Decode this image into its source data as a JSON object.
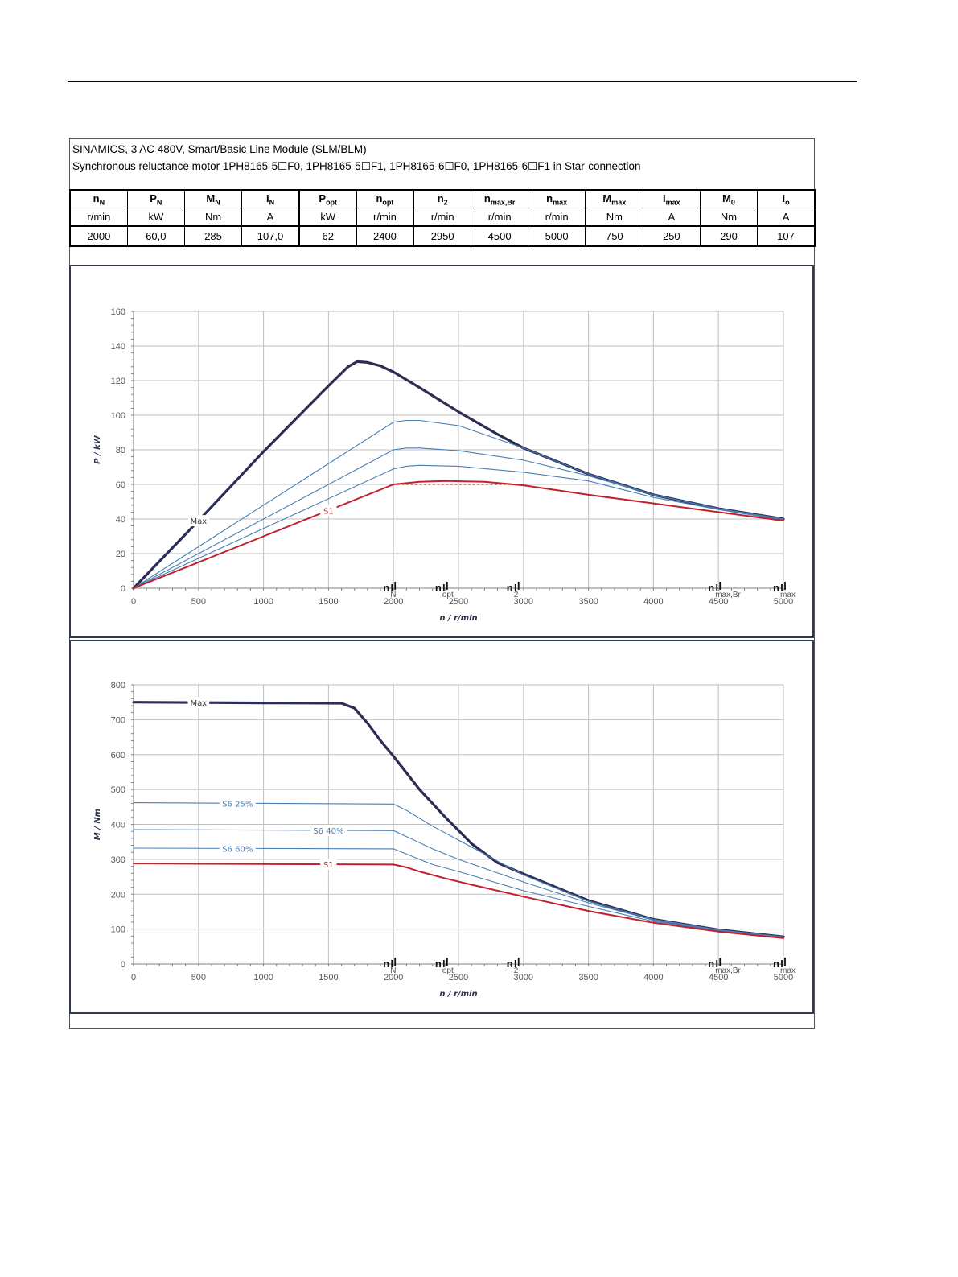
{
  "header": {
    "line1": "SINAMICS, 3 AC 480V, Smart/Basic Line Module (SLM/BLM)",
    "line2": "Synchronous reluctance motor  1PH8165-5☐F0,  1PH8165-5☐F1,  1PH8165-6☐F0,  1PH8165-6☐F1   in Star-connection"
  },
  "params_table": {
    "columns": [
      {
        "sym": "n",
        "sub": "N",
        "unit": "r/min",
        "value": "2000"
      },
      {
        "sym": "P",
        "sub": "N",
        "unit": "kW",
        "value": "60,0"
      },
      {
        "sym": "M",
        "sub": "N",
        "unit": "Nm",
        "value": "285"
      },
      {
        "sym": "I",
        "sub": "N",
        "unit": "A",
        "value": "107,0"
      },
      {
        "sym": "P",
        "sub": "opt",
        "unit": "kW",
        "value": "62"
      },
      {
        "sym": "n",
        "sub": "opt",
        "unit": "r/min",
        "value": "2400"
      },
      {
        "sym": "n",
        "sub": "2",
        "unit": "r/min",
        "value": "2950"
      },
      {
        "sym": "n",
        "sub": "max,Br",
        "unit": "r/min",
        "value": "4500"
      },
      {
        "sym": "n",
        "sub": "max",
        "unit": "r/min",
        "value": "5000"
      },
      {
        "sym": "M",
        "sub": "max",
        "unit": "Nm",
        "value": "750"
      },
      {
        "sym": "I",
        "sub": "max",
        "unit": "A",
        "value": "250"
      },
      {
        "sym": "M",
        "sub": "0",
        "unit": "Nm",
        "value": "290"
      },
      {
        "sym": "I",
        "sub": "o",
        "unit": "A",
        "value": "107"
      }
    ]
  },
  "colors": {
    "max": "#2b2d55",
    "s1": "#c0212b",
    "s6": "#4a7fb5",
    "grid": "#bfbfbf"
  },
  "chart_data": [
    {
      "type": "line",
      "xlabel": "n / r/min",
      "ylabel": "P / kW",
      "xlim": [
        0,
        5000
      ],
      "ylim": [
        0,
        160
      ],
      "xticks": [
        0,
        500,
        1000,
        1500,
        2000,
        2500,
        3000,
        3500,
        4000,
        4500,
        5000
      ],
      "yticks": [
        0,
        20,
        40,
        60,
        80,
        100,
        120,
        140,
        160
      ],
      "grid": true,
      "markers": [
        {
          "sym": "n",
          "sub": "N",
          "x": 2000
        },
        {
          "sym": "n",
          "sub": "opt",
          "x": 2400
        },
        {
          "sym": "n",
          "sub": "2",
          "x": 2950
        },
        {
          "sym": "n",
          "sub": "max,Br",
          "x": 4500
        },
        {
          "sym": "n",
          "sub": "max",
          "x": 5000
        }
      ],
      "series": [
        {
          "name": "Max",
          "role": "max",
          "label_at": 500,
          "x": [
            0,
            500,
            1000,
            1500,
            1650,
            1720,
            1800,
            1900,
            2000,
            2200,
            2500,
            2800,
            3000,
            3500,
            4000,
            4500,
            5000
          ],
          "y": [
            0,
            39,
            79,
            117,
            128,
            131,
            130.5,
            128.5,
            125,
            116,
            102,
            89,
            81,
            66,
            54,
            46,
            40
          ]
        },
        {
          "name": "",
          "role": "s6",
          "x": [
            0,
            1000,
            2000,
            2100,
            2200,
            2500,
            3000,
            3500,
            4000,
            4500,
            5000
          ],
          "y": [
            0,
            48,
            96,
            97,
            97,
            94,
            81,
            66,
            54,
            46,
            40
          ]
        },
        {
          "name": "",
          "role": "s6",
          "x": [
            0,
            1000,
            2000,
            2100,
            2200,
            2500,
            3000,
            3500,
            4000,
            4500,
            5000
          ],
          "y": [
            0,
            40,
            80,
            81,
            81,
            79.5,
            74,
            65,
            54,
            46,
            40
          ]
        },
        {
          "name": "",
          "role": "s6",
          "x": [
            0,
            1000,
            2000,
            2100,
            2200,
            2500,
            3000,
            3500,
            4000,
            4500,
            5000
          ],
          "y": [
            0,
            34.5,
            69,
            70.5,
            71,
            70.5,
            67,
            62,
            52.5,
            45.5,
            39.5
          ]
        },
        {
          "name": "S1",
          "role": "s1",
          "label_at": 1500,
          "x": [
            0,
            500,
            1000,
            1500,
            2000,
            2200,
            2400,
            2700,
            3000,
            3500,
            4000,
            4500,
            5000
          ],
          "y": [
            0,
            15,
            30,
            45,
            60,
            61.5,
            62,
            61.5,
            59.5,
            54,
            49,
            44,
            39
          ]
        },
        {
          "name": "",
          "role": "s1-dotted",
          "x": [
            2000,
            2950
          ],
          "y": [
            60,
            60
          ]
        }
      ]
    },
    {
      "type": "line",
      "xlabel": "n / r/min",
      "ylabel": "M / Nm",
      "xlim": [
        0,
        5000
      ],
      "ylim": [
        0,
        800
      ],
      "xticks": [
        0,
        500,
        1000,
        1500,
        2000,
        2500,
        3000,
        3500,
        4000,
        4500,
        5000
      ],
      "yticks": [
        0,
        100,
        200,
        300,
        400,
        500,
        600,
        700,
        800
      ],
      "grid": true,
      "markers": [
        {
          "sym": "n",
          "sub": "N",
          "x": 2000
        },
        {
          "sym": "n",
          "sub": "opt",
          "x": 2400
        },
        {
          "sym": "n",
          "sub": "2",
          "x": 2950
        },
        {
          "sym": "n",
          "sub": "max,Br",
          "x": 4500
        },
        {
          "sym": "n",
          "sub": "max",
          "x": 5000
        }
      ],
      "series": [
        {
          "name": "Max",
          "role": "max",
          "label_at": 500,
          "x": [
            0,
            1000,
            1600,
            1700,
            1800,
            1900,
            2000,
            2200,
            2400,
            2600,
            2800,
            3000,
            3500,
            4000,
            4500,
            5000
          ],
          "y": [
            750,
            748,
            747,
            733,
            690,
            640,
            595,
            500,
            420,
            345,
            290,
            258,
            182,
            128,
            98,
            78
          ]
        },
        {
          "name": "S6 25%",
          "role": "s6",
          "label_at": 800,
          "x": [
            0,
            2000,
            2100,
            2300,
            2500,
            3000,
            3500,
            4000,
            4500,
            5000
          ],
          "y": [
            462,
            458,
            440,
            395,
            355,
            255,
            180,
            128,
            98,
            78
          ]
        },
        {
          "name": "S6 40%",
          "role": "s6",
          "label_at": 1500,
          "x": [
            0,
            2000,
            2100,
            2300,
            2500,
            3000,
            3500,
            4000,
            4500,
            5000
          ],
          "y": [
            385,
            382,
            365,
            330,
            300,
            235,
            175,
            126,
            97,
            77
          ]
        },
        {
          "name": "S6 60%",
          "role": "s6",
          "label_at": 800,
          "x": [
            0,
            2000,
            2100,
            2300,
            2500,
            3000,
            3500,
            4000,
            4500,
            5000
          ],
          "y": [
            332,
            330,
            315,
            285,
            265,
            210,
            165,
            122,
            95,
            76
          ]
        },
        {
          "name": "S1",
          "role": "s1",
          "label_at": 1500,
          "x": [
            0,
            2000,
            2100,
            2200,
            2400,
            2600,
            3000,
            3500,
            4000,
            4500,
            5000
          ],
          "y": [
            288,
            285,
            277,
            265,
            245,
            227,
            193,
            152,
            118,
            93,
            74
          ]
        }
      ]
    }
  ]
}
